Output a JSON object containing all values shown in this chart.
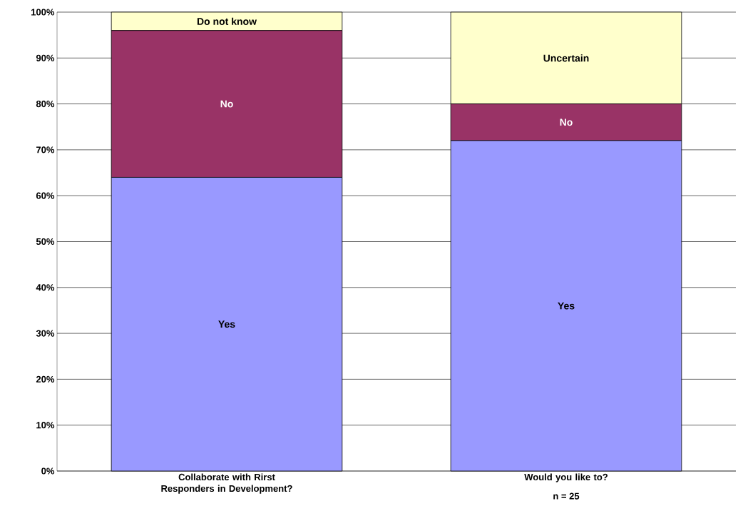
{
  "chart_data": {
    "type": "bar",
    "stacked": true,
    "categories": [
      "Collaborate with Rirst Responders in Development?",
      "Would you like to?"
    ],
    "series": [
      {
        "color": "#9999ff",
        "values": [
          64,
          72
        ],
        "value_labels": [
          "Yes",
          "Yes"
        ]
      },
      {
        "color": "#993366",
        "values": [
          32,
          8
        ],
        "value_labels": [
          "No",
          "No"
        ]
      },
      {
        "color": "#ffffcc",
        "values": [
          4,
          20
        ],
        "value_labels": [
          "Do not know",
          "Uncertain"
        ]
      }
    ],
    "ylim": [
      0,
      100
    ],
    "yticks": [
      {
        "value": 0,
        "label": "0%"
      },
      {
        "value": 10,
        "label": "10%"
      },
      {
        "value": 20,
        "label": "20%"
      },
      {
        "value": 30,
        "label": "30%"
      },
      {
        "value": 40,
        "label": "40%"
      },
      {
        "value": 50,
        "label": "50%"
      },
      {
        "value": 60,
        "label": "60%"
      },
      {
        "value": 70,
        "label": "70%"
      },
      {
        "value": 80,
        "label": "80%"
      },
      {
        "value": 90,
        "label": "90%"
      },
      {
        "value": 100,
        "label": "100%"
      }
    ],
    "grid": "y",
    "annotations": [
      "n = 25"
    ]
  }
}
